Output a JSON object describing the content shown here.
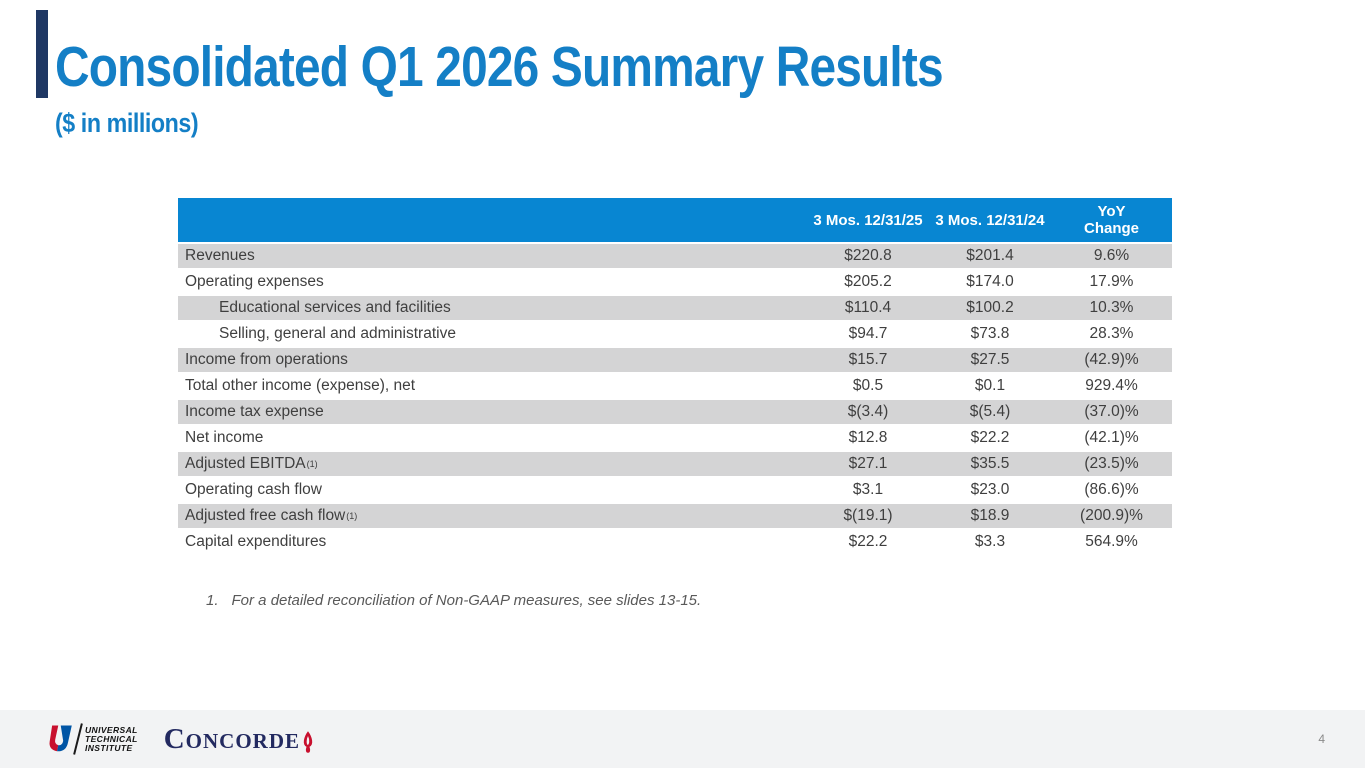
{
  "header": {
    "title": "Consolidated Q1 2026 Summary Results",
    "subtitle": "($ in millions)"
  },
  "table": {
    "columns": [
      "3 Mos. 12/31/25",
      "3 Mos. 12/31/24",
      "YoY\nChange"
    ],
    "rows": [
      {
        "label": "Revenues",
        "indent": false,
        "sup": "",
        "current": "$220.8",
        "prior": "$201.4",
        "yoy": "9.6%"
      },
      {
        "label": "Operating expenses",
        "indent": false,
        "sup": "",
        "current": "$205.2",
        "prior": "$174.0",
        "yoy": "17.9%"
      },
      {
        "label": "Educational services and facilities",
        "indent": true,
        "sup": "",
        "current": "$110.4",
        "prior": "$100.2",
        "yoy": "10.3%"
      },
      {
        "label": "Selling, general and administrative",
        "indent": true,
        "sup": "",
        "current": "$94.7",
        "prior": "$73.8",
        "yoy": "28.3%"
      },
      {
        "label": "Income from operations",
        "indent": false,
        "sup": "",
        "current": "$15.7",
        "prior": "$27.5",
        "yoy": "(42.9)%"
      },
      {
        "label": "Total other income (expense), net",
        "indent": false,
        "sup": "",
        "current": "$0.5",
        "prior": "$0.1",
        "yoy": "929.4%"
      },
      {
        "label": "Income tax expense",
        "indent": false,
        "sup": "",
        "current": "$(3.4)",
        "prior": "$(5.4)",
        "yoy": "(37.0)%"
      },
      {
        "label": "Net income",
        "indent": false,
        "sup": "",
        "current": "$12.8",
        "prior": "$22.2",
        "yoy": "(42.1)%"
      },
      {
        "label": "Adjusted EBITDA",
        "indent": false,
        "sup": "(1)",
        "current": "$27.1",
        "prior": "$35.5",
        "yoy": "(23.5)%"
      },
      {
        "label": "Operating cash flow",
        "indent": false,
        "sup": "",
        "current": "$3.1",
        "prior": "$23.0",
        "yoy": "(86.6)%"
      },
      {
        "label": "Adjusted free cash flow",
        "indent": false,
        "sup": "(1)",
        "current": "$(19.1)",
        "prior": "$18.9",
        "yoy": "(200.9)%"
      },
      {
        "label": "Capital expenditures",
        "indent": false,
        "sup": "",
        "current": "$22.2",
        "prior": "$3.3",
        "yoy": "564.9%"
      }
    ]
  },
  "footnote": {
    "number": "1.",
    "text": "For a detailed reconciliation of Non-GAAP measures, see slides 13-15."
  },
  "footer": {
    "uti": {
      "line1": "UNIVERSAL",
      "line2": "TECHNICAL",
      "line3": "INSTITUTE"
    },
    "concorde": {
      "first": "C",
      "rest": "ONCORDE"
    },
    "page_number": "4"
  },
  "colors": {
    "title_blue": "#147fc6",
    "table_header_blue": "#0886d2",
    "row_gray": "#d4d4d5",
    "accent_navy": "#1f3864",
    "uti_red": "#c8102e",
    "uti_blue": "#0055a5",
    "concorde_navy": "#232a60",
    "footer_gray": "#f2f3f4"
  }
}
